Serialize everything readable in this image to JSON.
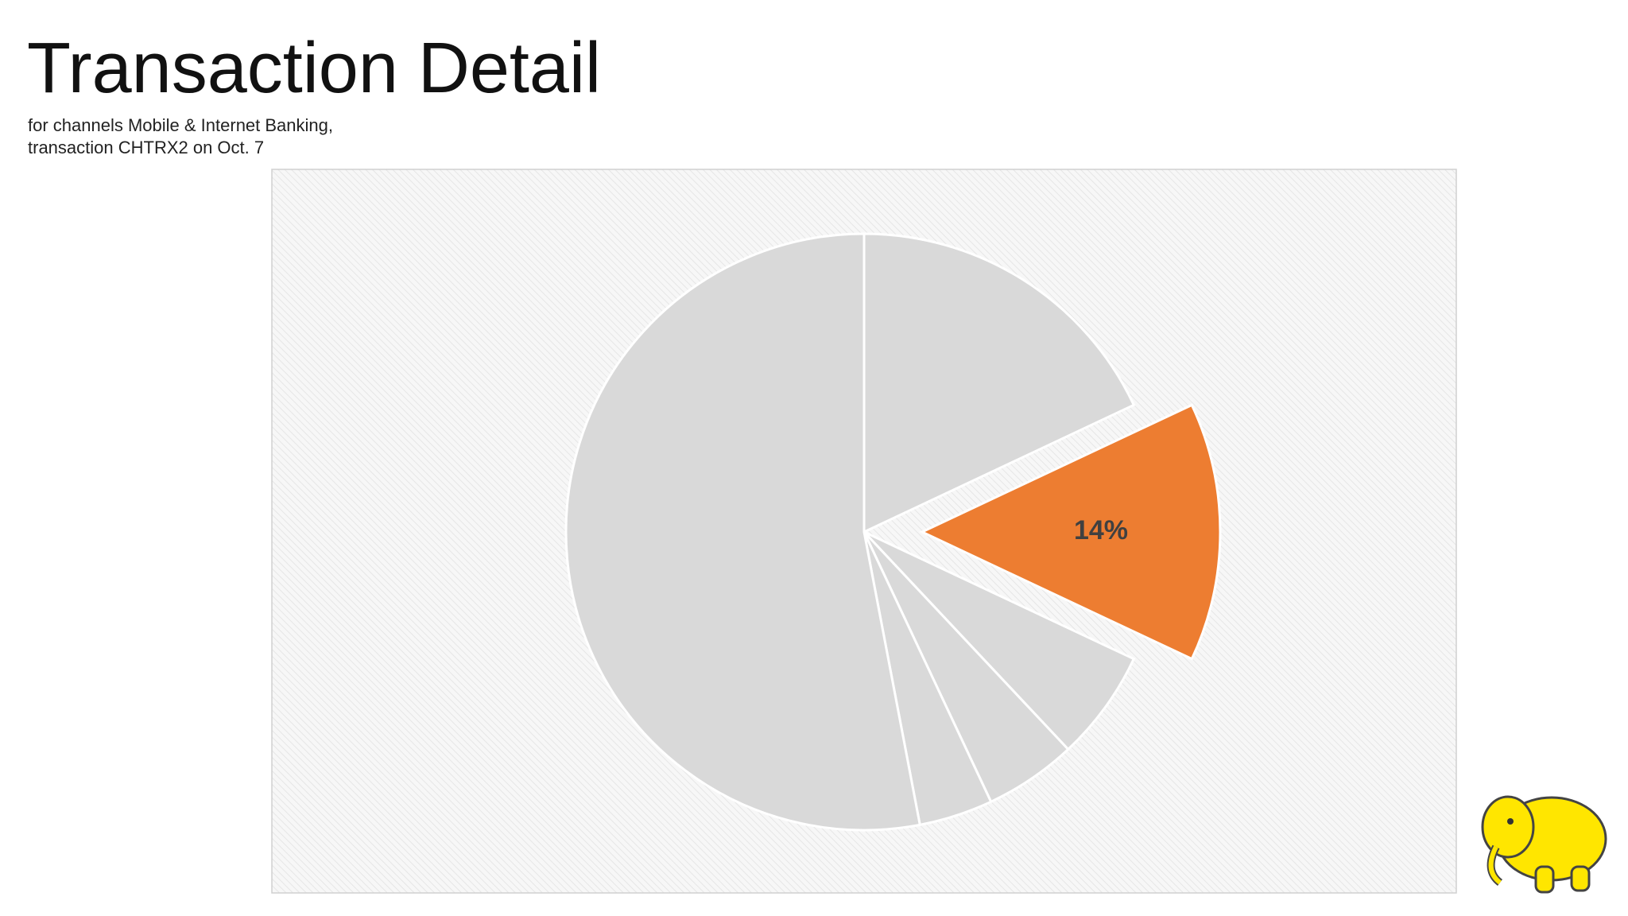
{
  "chart_data": {
    "type": "pie",
    "title": "Transaction Detail",
    "subtitle": [
      "for channels Mobile & Internet Banking,",
      "transaction CHTRX2 on Oct. 7"
    ],
    "values": [
      18,
      14,
      6,
      5,
      4,
      53
    ],
    "value_labels": [
      null,
      "14%",
      null,
      null,
      null,
      null
    ],
    "colors": [
      "#d9d9d9",
      "#ed7d31",
      "#d9d9d9",
      "#d9d9d9",
      "#d9d9d9",
      "#d9d9d9"
    ]
  }
}
